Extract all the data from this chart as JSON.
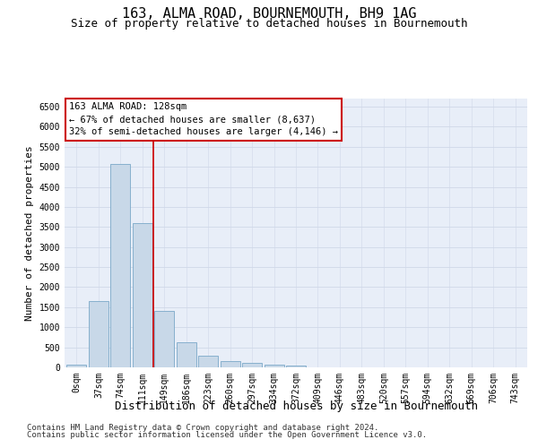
{
  "title": "163, ALMA ROAD, BOURNEMOUTH, BH9 1AG",
  "subtitle": "Size of property relative to detached houses in Bournemouth",
  "xlabel": "Distribution of detached houses by size in Bournemouth",
  "ylabel": "Number of detached properties",
  "footer_line1": "Contains HM Land Registry data © Crown copyright and database right 2024.",
  "footer_line2": "Contains public sector information licensed under the Open Government Licence v3.0.",
  "bin_labels": [
    "0sqm",
    "37sqm",
    "74sqm",
    "111sqm",
    "149sqm",
    "186sqm",
    "223sqm",
    "260sqm",
    "297sqm",
    "334sqm",
    "372sqm",
    "409sqm",
    "446sqm",
    "483sqm",
    "520sqm",
    "557sqm",
    "594sqm",
    "632sqm",
    "669sqm",
    "706sqm",
    "743sqm"
  ],
  "bar_values": [
    75,
    1650,
    5060,
    3590,
    1410,
    620,
    290,
    155,
    110,
    75,
    55,
    0,
    0,
    0,
    0,
    0,
    0,
    0,
    0,
    0,
    0
  ],
  "bar_color": "#c8d8e8",
  "bar_edgecolor": "#7aa8c8",
  "vline_x": 3.5,
  "vline_color": "#cc0000",
  "annotation_line1": "163 ALMA ROAD: 128sqm",
  "annotation_line2": "← 67% of detached houses are smaller (8,637)",
  "annotation_line3": "32% of semi-detached houses are larger (4,146) →",
  "annotation_box_color": "#ffffff",
  "annotation_border_color": "#cc0000",
  "ylim": [
    0,
    6700
  ],
  "yticks": [
    0,
    500,
    1000,
    1500,
    2000,
    2500,
    3000,
    3500,
    4000,
    4500,
    5000,
    5500,
    6000,
    6500
  ],
  "grid_color": "#d0d8e8",
  "bg_color": "#e8eef8",
  "title_fontsize": 11,
  "subtitle_fontsize": 9,
  "xlabel_fontsize": 9,
  "ylabel_fontsize": 8,
  "tick_fontsize": 7,
  "annotation_fontsize": 7.5,
  "footer_fontsize": 6.5
}
